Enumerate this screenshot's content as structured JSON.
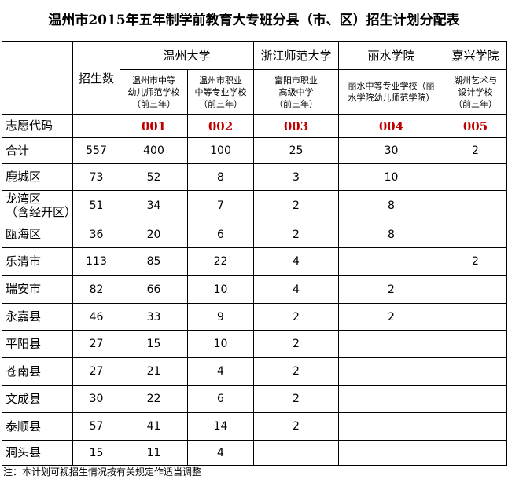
{
  "title": "温州市2015年五年制学前教育大专班分县（市、区）招生计划分配表",
  "header": {
    "enrollment_label": "招生数",
    "code_label": "志愿代码",
    "universities": [
      "温州大学",
      "浙江师范大学",
      "丽水学院",
      "嘉兴学院"
    ],
    "schools": [
      "温州市中等\n幼儿师范学校\n（前三年）",
      "温州市职业\n中等专业学校\n（前三年）",
      "富阳市职业\n高级中学\n（前三年）",
      "丽水中等专业学校（丽\n水学院幼儿师范学院）",
      "湖州艺术与\n设计学校\n（前三年）"
    ],
    "codes": [
      "001",
      "002",
      "003",
      "004",
      "005"
    ]
  },
  "table": {
    "rows": [
      [
        "合计",
        557,
        400,
        100,
        25,
        30,
        2
      ],
      [
        "鹿城区",
        73,
        52,
        8,
        3,
        10,
        null
      ],
      [
        "龙湾区\n（含经开区）",
        51,
        34,
        7,
        2,
        8,
        null
      ],
      [
        "瓯海区",
        36,
        20,
        6,
        2,
        8,
        null
      ],
      [
        "乐清市",
        113,
        85,
        22,
        4,
        null,
        2
      ],
      [
        "瑞安市",
        82,
        66,
        10,
        4,
        2,
        null
      ],
      [
        "永嘉县",
        46,
        33,
        9,
        2,
        2,
        null
      ],
      [
        "平阳县",
        27,
        15,
        10,
        2,
        null,
        null
      ],
      [
        "苍南县",
        27,
        21,
        4,
        2,
        null,
        null
      ],
      [
        "文成县",
        30,
        22,
        6,
        2,
        null,
        null
      ],
      [
        "泰顺县",
        57,
        41,
        14,
        2,
        null,
        null
      ],
      [
        "洞头县",
        15,
        11,
        4,
        null,
        null,
        null
      ]
    ]
  },
  "note": "注：本计划可视招生情况按有关规定作适当调整"
}
